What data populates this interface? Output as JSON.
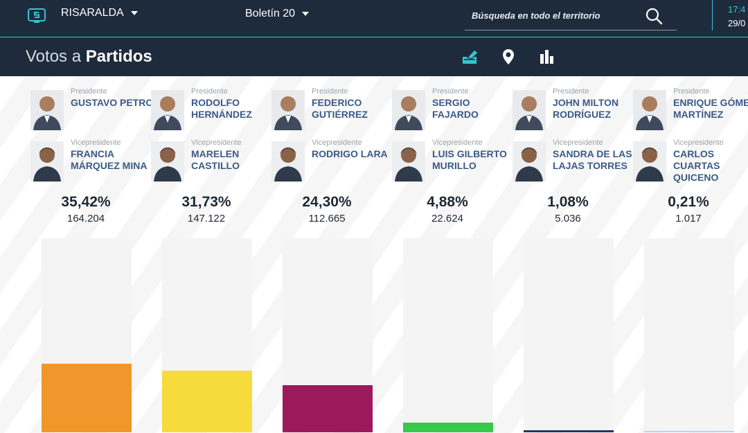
{
  "header": {
    "region": "RISARALDA",
    "bulletin": "Boletín 20",
    "search_placeholder": "Búsqueda en todo el territorio",
    "time": "17:4",
    "date": "29/0"
  },
  "title": {
    "prefix": "Votos a",
    "main": "Partidos"
  },
  "toolbar": {
    "icons": [
      "ballot-box-icon",
      "map-pin-icon",
      "bar-chart-icon"
    ]
  },
  "colors": {
    "header_bg": "#1e2b3c",
    "accent": "#35c6cf",
    "name_text": "#3a5a86"
  },
  "candidates": [
    {
      "president": {
        "role": "Presidente",
        "name": "GUSTAVO PETRO"
      },
      "vice": {
        "role": "Vicepresidente",
        "name": "FRANCIA MÁRQUEZ MINA"
      },
      "percent": "35,42%",
      "votes": "164.204",
      "share": 35.42,
      "color": "#f0962a"
    },
    {
      "president": {
        "role": "Presidente",
        "name": "RODOLFO HERNÁNDEZ"
      },
      "vice": {
        "role": "Vicepresidente",
        "name": "MARELEN CASTILLO"
      },
      "percent": "31,73%",
      "votes": "147.122",
      "share": 31.73,
      "color": "#f5dc3c"
    },
    {
      "president": {
        "role": "Presidente",
        "name": "FEDERICO GUTIÉRREZ"
      },
      "vice": {
        "role": "Vicepresidente",
        "name": "RODRIGO LARA"
      },
      "percent": "24,30%",
      "votes": "112.665",
      "share": 24.3,
      "color": "#9c1a5c"
    },
    {
      "president": {
        "role": "Presidente",
        "name": "SERGIO FAJARDO"
      },
      "vice": {
        "role": "Vicepresidente",
        "name": "LUIS GILBERTO MURILLO"
      },
      "percent": "4,88%",
      "votes": "22.624",
      "share": 4.88,
      "color": "#38c94a"
    },
    {
      "president": {
        "role": "Presidente",
        "name": "JOHN MILTON RODRÍGUEZ"
      },
      "vice": {
        "role": "Vicepresidente",
        "name": "SANDRA DE LAS LAJAS TORRES"
      },
      "percent": "1,08%",
      "votes": "5.036",
      "share": 1.08,
      "color": "#243468"
    },
    {
      "president": {
        "role": "Presidente",
        "name": "ENRIQUE GÓMEZ MARTÍNEZ"
      },
      "vice": {
        "role": "Vicepresidente",
        "name": "CARLOS CUARTAS QUICENO"
      },
      "percent": "0,21%",
      "votes": "1.017",
      "share": 0.21,
      "color": "#b9d3ec"
    }
  ],
  "chart_data": {
    "type": "bar",
    "categories": [
      "GUSTAVO PETRO",
      "RODOLFO HERNÁNDEZ",
      "FEDERICO GUTIÉRREZ",
      "SERGIO FAJARDO",
      "JOHN MILTON RODRÍGUEZ",
      "ENRIQUE GÓMEZ MARTÍNEZ"
    ],
    "values": [
      35.42,
      31.73,
      24.3,
      4.88,
      1.08,
      0.21
    ],
    "ylim": [
      0,
      100
    ],
    "grid": false
  }
}
